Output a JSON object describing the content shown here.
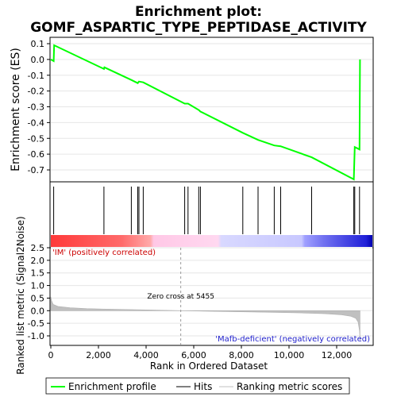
{
  "title_line1": "Enrichment plot:",
  "title_line2": "GOMF_ASPARTIC_TYPE_PEPTIDASE_ACTIVITY",
  "legend": {
    "enrichment": "Enrichment profile",
    "hits": "Hits",
    "ranking": "Ranking metric scores"
  },
  "colors": {
    "enrichment_line": "#00ff00",
    "hits": "#000000",
    "ranking_fill": "#c0c0c0",
    "positive_label": "#cc0000",
    "negative_label": "#2222cc"
  },
  "annotations": {
    "positive": "'IM' (positively correlated)",
    "negative": "'Mafb-deficient' (negatively correlated)",
    "zero_cross": "Zero cross at 5455"
  },
  "chart_data": [
    {
      "type": "line",
      "name": "enrichment-profile",
      "ylabel": "Enrichment score (ES)",
      "xlim": [
        0,
        13500
      ],
      "ylim": [
        -0.8,
        0.1
      ],
      "yticks": [
        "0.1",
        "0.0",
        "-0.1",
        "-0.2",
        "-0.3",
        "-0.4",
        "-0.5",
        "-0.6",
        "-0.7"
      ],
      "ytick_values": [
        0.1,
        0.0,
        -0.1,
        -0.2,
        -0.3,
        -0.4,
        -0.5,
        -0.6,
        -0.7
      ],
      "x": [
        0,
        120,
        140,
        2230,
        2250,
        3380,
        3650,
        3700,
        3880,
        5620,
        5760,
        6210,
        6280,
        8060,
        8700,
        9380,
        9650,
        10950,
        12720,
        12740,
        12760,
        12960,
        12980
      ],
      "y": [
        0.0,
        -0.01,
        0.09,
        -0.06,
        -0.05,
        -0.13,
        -0.15,
        -0.14,
        -0.145,
        -0.28,
        -0.28,
        -0.32,
        -0.33,
        -0.465,
        -0.51,
        -0.545,
        -0.55,
        -0.62,
        -0.76,
        -0.655,
        -0.555,
        -0.57,
        0.0
      ]
    },
    {
      "type": "hits",
      "name": "hits",
      "positions": [
        120,
        2230,
        3380,
        3650,
        3700,
        3880,
        5620,
        5760,
        6210,
        6280,
        8060,
        8700,
        9380,
        9650,
        10950,
        12720,
        12760,
        12960
      ]
    },
    {
      "type": "area",
      "name": "ranking-metric",
      "ylabel": "Ranked list metric (Signal2Noise)",
      "xlabel": "Rank in Ordered Dataset",
      "xlim": [
        0,
        13500
      ],
      "ylim": [
        -1.3,
        2.5
      ],
      "xticks": [
        "0",
        "2,000",
        "4,000",
        "6,000",
        "8,000",
        "10,000",
        "12,000"
      ],
      "xtick_values": [
        0,
        2000,
        4000,
        6000,
        8000,
        10000,
        12000
      ],
      "yticks": [
        "2.5",
        "2.0",
        "1.5",
        "1.0",
        "0.5",
        "0.0",
        "-0.5",
        "-1.0"
      ],
      "ytick_values": [
        2.5,
        2.0,
        1.5,
        1.0,
        0.5,
        0.0,
        -0.5,
        -1.0
      ],
      "zero_cross": 5455,
      "x": [
        0,
        30,
        100,
        300,
        800,
        1500,
        2500,
        4000,
        5455,
        7000,
        9000,
        10500,
        11500,
        12200,
        12600,
        12800,
        12900,
        12960,
        12980
      ],
      "y": [
        0.55,
        0.4,
        0.25,
        0.17,
        0.12,
        0.08,
        0.06,
        0.03,
        0.0,
        -0.03,
        -0.06,
        -0.09,
        -0.12,
        -0.16,
        -0.22,
        -0.3,
        -0.45,
        -0.8,
        -1.2
      ]
    }
  ]
}
